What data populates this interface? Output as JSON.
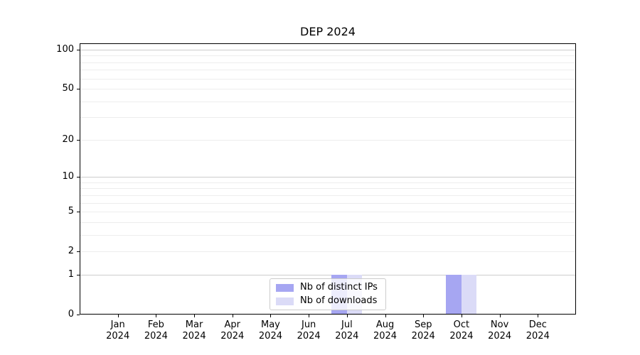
{
  "chart_data": {
    "type": "bar",
    "title": "DEP 2024",
    "categories": [
      "Jan",
      "Feb",
      "Mar",
      "Apr",
      "May",
      "Jun",
      "Jul",
      "Aug",
      "Sep",
      "Oct",
      "Nov",
      "Dec"
    ],
    "category_year": "2024",
    "series": [
      {
        "name": "Nb of distinct IPs",
        "color": "#a6a6f2",
        "values": [
          0,
          0,
          0,
          0,
          0,
          0,
          1,
          0,
          0,
          1,
          0,
          0
        ]
      },
      {
        "name": "Nb of downloads",
        "color": "#dbdbf7",
        "values": [
          0,
          0,
          0,
          0,
          0,
          0,
          1,
          0,
          0,
          1,
          0,
          0
        ]
      }
    ],
    "y_axis": {
      "scale": "log1p",
      "tick_labels": [
        "100",
        "50",
        "20",
        "10",
        "5",
        "2",
        "1",
        "0"
      ],
      "tick_values": [
        100,
        50,
        20,
        10,
        5,
        2,
        1,
        0
      ],
      "major_gridline_values": [
        1,
        10,
        100
      ],
      "minor_gridline_values": [
        2,
        3,
        4,
        5,
        6,
        7,
        8,
        9,
        20,
        30,
        40,
        50,
        60,
        70,
        80,
        90
      ],
      "ylim": [
        0,
        112
      ]
    },
    "x_axis": {
      "tick_count": 12
    },
    "legend": {
      "position": "lower center"
    },
    "grid": true
  },
  "colors": {
    "background": "#ffffff",
    "spine": "#000000",
    "grid_major": "#cdcdcd",
    "grid_minor": "#ededed",
    "bar_distinct_ips": "#a6a6f2",
    "bar_downloads": "#dbdbf7",
    "legend_border": "#cccccc",
    "text": "#000000"
  }
}
